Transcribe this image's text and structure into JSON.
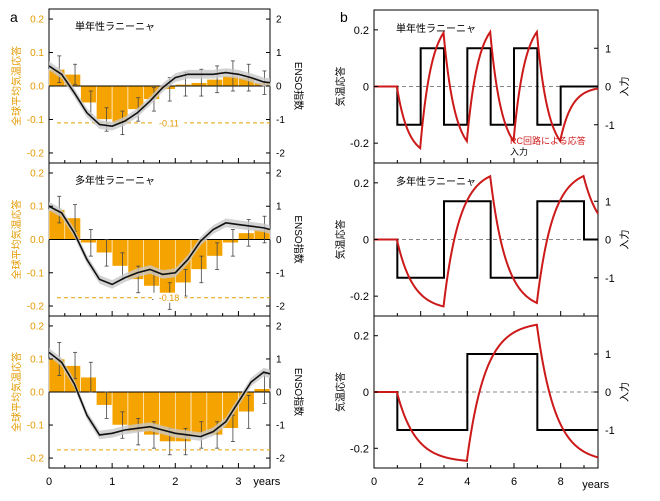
{
  "panel_labels": {
    "a": "a",
    "b": "b"
  },
  "colors": {
    "bar": "#f5a300",
    "orange_text": "#e39a00",
    "ref_line": "#e8a000",
    "enso_line": "#111111",
    "band": "#c8c8c8",
    "rc_red": "#cc1a1a",
    "input_black": "#000000"
  },
  "chart_data": [
    {
      "type": "bar",
      "panel": "a1",
      "title": "単年性ラニーニャ",
      "ylabel": "全球平均気温応答",
      "y2label": "ENSO指数",
      "ylim": [
        -0.23,
        0.23
      ],
      "yticks": [
        "0.2",
        "0.1",
        "0.0",
        "-0.1",
        "-0.2"
      ],
      "y2lim": [
        -2.3,
        2.3
      ],
      "y2ticks": [
        "2",
        "1",
        "0",
        "-1",
        "-2"
      ],
      "xlim": [
        0,
        3.5
      ],
      "ref_value": -0.11,
      "ref_label": "-0.11",
      "bars": {
        "x": [
          0.125,
          0.375,
          0.625,
          0.875,
          1.125,
          1.375,
          1.625,
          1.875,
          2.125,
          2.375,
          2.625,
          2.875,
          3.125,
          3.375
        ],
        "values": [
          0.05,
          0.035,
          -0.05,
          -0.1,
          -0.11,
          -0.07,
          -0.04,
          -0.01,
          0.005,
          0.01,
          0.02,
          0.03,
          0.025,
          0.01
        ],
        "errors": [
          0.04,
          0.03,
          0.035,
          0.035,
          0.035,
          0.035,
          0.035,
          0.035,
          0.035,
          0.04,
          0.04,
          0.045,
          0.04,
          0.035
        ]
      },
      "enso_line": {
        "x": [
          0,
          0.2,
          0.4,
          0.6,
          0.8,
          1.0,
          1.2,
          1.4,
          1.6,
          1.8,
          2.0,
          2.2,
          2.4,
          2.6,
          2.8,
          3.0,
          3.2,
          3.4,
          3.5
        ],
        "values": [
          0.6,
          0.35,
          -0.2,
          -0.8,
          -1.15,
          -1.2,
          -1.05,
          -0.8,
          -0.45,
          -0.05,
          0.25,
          0.35,
          0.35,
          0.35,
          0.4,
          0.35,
          0.25,
          0.12,
          0.1
        ]
      }
    },
    {
      "type": "bar",
      "panel": "a2",
      "title": "多年性ラニーニャ",
      "ylabel": "全球平均気温応答",
      "y2label": "ENSO指数",
      "ylim": [
        -0.23,
        0.23
      ],
      "yticks": [
        "0.2",
        "0.1",
        "0.0",
        "-0.1",
        "-0.2"
      ],
      "y2lim": [
        -2.3,
        2.3
      ],
      "y2ticks": [
        "2",
        "1",
        "0",
        "-1",
        "-2"
      ],
      "xlim": [
        0,
        3.5
      ],
      "ref_value": -0.175,
      "ref_label": "-0.18",
      "bars": {
        "x": [
          0.125,
          0.375,
          0.625,
          0.875,
          1.125,
          1.375,
          1.625,
          1.875,
          2.125,
          2.375,
          2.625,
          2.875,
          3.125,
          3.375
        ],
        "values": [
          0.09,
          0.065,
          -0.01,
          -0.04,
          -0.08,
          -0.12,
          -0.14,
          -0.17,
          -0.13,
          -0.09,
          -0.05,
          -0.01,
          0.02,
          0.03
        ],
        "errors": [
          0.04,
          0.04,
          0.04,
          0.04,
          0.04,
          0.04,
          0.04,
          0.04,
          0.04,
          0.04,
          0.04,
          0.04,
          0.04,
          0.04
        ]
      },
      "enso_line": {
        "x": [
          0,
          0.2,
          0.4,
          0.6,
          0.8,
          1.0,
          1.2,
          1.4,
          1.6,
          1.8,
          2.0,
          2.2,
          2.4,
          2.6,
          2.8,
          3.0,
          3.2,
          3.4,
          3.5
        ],
        "values": [
          1.0,
          0.8,
          0.2,
          -0.6,
          -1.2,
          -1.35,
          -1.15,
          -1.0,
          -0.9,
          -1.05,
          -1.0,
          -0.6,
          -0.05,
          0.3,
          0.5,
          0.45,
          0.4,
          0.35,
          0.3
        ]
      }
    },
    {
      "type": "bar",
      "panel": "a3",
      "title": "",
      "ylabel": "全球平均気温応答",
      "y2label": "ENSO指数",
      "ylim": [
        -0.23,
        0.23
      ],
      "yticks": [
        "0.2",
        "0.1",
        "0.0",
        "-0.1",
        "-0.2"
      ],
      "y2lim": [
        -2.3,
        2.3
      ],
      "y2ticks": [
        "2",
        "1",
        "0",
        "-1",
        "-2"
      ],
      "xlim": [
        0,
        3.5
      ],
      "xticks": [
        "0",
        "1",
        "2",
        "3"
      ],
      "xlabel": "years",
      "ref_value": -0.175,
      "ref_label": "",
      "bars": {
        "x": [
          0.125,
          0.375,
          0.625,
          0.875,
          1.125,
          1.375,
          1.625,
          1.875,
          2.125,
          2.375,
          2.625,
          2.875,
          3.125,
          3.375
        ],
        "values": [
          0.1,
          0.08,
          0.045,
          -0.04,
          -0.1,
          -0.12,
          -0.13,
          -0.15,
          -0.15,
          -0.13,
          -0.13,
          -0.11,
          -0.06,
          0.01
        ],
        "errors": [
          0.05,
          0.04,
          0.045,
          0.04,
          0.04,
          0.04,
          0.04,
          0.04,
          0.04,
          0.04,
          0.04,
          0.04,
          0.05,
          0.045
        ]
      },
      "enso_line": {
        "x": [
          0,
          0.2,
          0.4,
          0.6,
          0.8,
          1.0,
          1.2,
          1.4,
          1.6,
          1.8,
          2.0,
          2.2,
          2.4,
          2.6,
          2.8,
          3.0,
          3.2,
          3.4,
          3.5
        ],
        "values": [
          1.2,
          0.9,
          0.25,
          -0.7,
          -1.3,
          -1.25,
          -1.15,
          -1.1,
          -1.05,
          -1.15,
          -1.25,
          -1.3,
          -1.35,
          -1.2,
          -0.9,
          -0.3,
          0.3,
          0.6,
          0.55
        ]
      }
    },
    {
      "type": "line",
      "panel": "b1",
      "title": "単年性ラニーニャ",
      "ylabel": "気温応答",
      "y2label": "入力",
      "ylim": [
        -0.27,
        0.27
      ],
      "yticks": [
        "0.2",
        "0",
        "-0.2"
      ],
      "y2lim": [
        -2.0,
        2.0
      ],
      "y2ticks": [
        "1",
        "0",
        "-1"
      ],
      "xlim": [
        0,
        9.6
      ],
      "legend": {
        "rc": "RC回路による応答",
        "input": "入力"
      },
      "input_series": {
        "x": [
          0,
          1,
          1,
          2,
          2,
          3,
          3,
          4,
          4,
          5,
          5,
          6,
          6,
          7,
          7,
          8,
          8,
          9.6
        ],
        "values": [
          0,
          0,
          -1,
          -1,
          1,
          1,
          -1,
          -1,
          1,
          1,
          -1,
          -1,
          1,
          1,
          -1,
          -1,
          0,
          0
        ]
      },
      "rc_tau": 0.5
    },
    {
      "type": "line",
      "panel": "b2",
      "title": "多年性ラニーニャ",
      "ylabel": "気温応答",
      "y2label": "入力",
      "ylim": [
        -0.27,
        0.27
      ],
      "yticks": [
        "0.2",
        "0",
        "-0.2"
      ],
      "y2lim": [
        -2.0,
        2.0
      ],
      "y2ticks": [
        "1",
        "0",
        "-1"
      ],
      "xlim": [
        0,
        9.6
      ],
      "input_series": {
        "x": [
          0,
          1,
          1,
          3,
          3,
          5,
          5,
          7,
          7,
          9,
          9,
          9.6
        ],
        "values": [
          0,
          0,
          -1,
          -1,
          1,
          1,
          -1,
          -1,
          1,
          1,
          0,
          0
        ]
      },
      "rc_tau": 0.7
    },
    {
      "type": "line",
      "panel": "b3",
      "title": "",
      "ylabel": "気温応答",
      "y2label": "入力",
      "ylim": [
        -0.27,
        0.27
      ],
      "yticks": [
        "0.2",
        "0",
        "-0.2"
      ],
      "y2lim": [
        -2.0,
        2.0
      ],
      "y2ticks": [
        "1",
        "0",
        "-1"
      ],
      "xlim": [
        0,
        9.6
      ],
      "xticks": [
        "0",
        "2",
        "4",
        "6",
        "8"
      ],
      "xlabel": "years",
      "input_series": {
        "x": [
          0,
          1,
          1,
          4,
          4,
          7,
          7,
          9.6
        ],
        "values": [
          0,
          0,
          -1,
          -1,
          1,
          1,
          -1,
          -1
        ]
      },
      "rc_tau": 0.8
    }
  ]
}
